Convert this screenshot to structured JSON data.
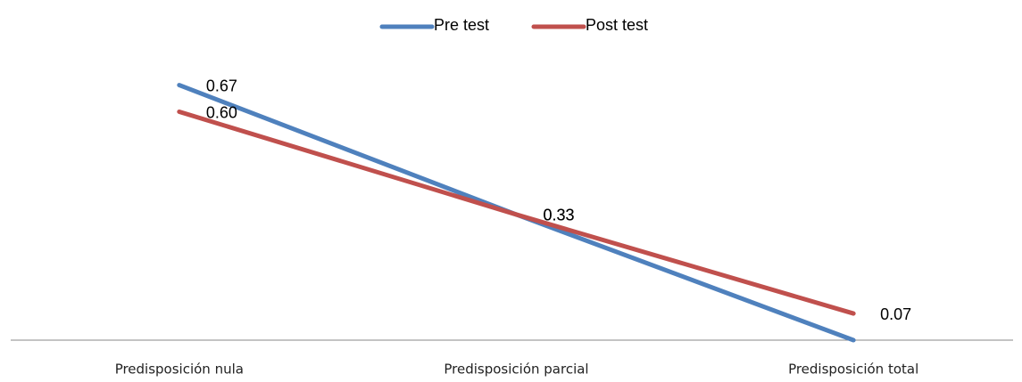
{
  "chart_data": {
    "type": "line",
    "categories": [
      "Predisposición nula",
      "Predisposición parcial",
      "Predisposición total"
    ],
    "series": [
      {
        "name": "Pre test",
        "color": "#4f81bd",
        "values": [
          0.67,
          0.33,
          0
        ],
        "value_labels": [
          "0.67",
          "0.33",
          null
        ]
      },
      {
        "name": "Post test",
        "color": "#c0504d",
        "values": [
          0.6,
          0.33,
          0.07
        ],
        "value_labels": [
          "0.60",
          "0.33",
          "0.07"
        ]
      }
    ],
    "ylim": [
      0,
      0.8
    ],
    "legend": "top"
  }
}
